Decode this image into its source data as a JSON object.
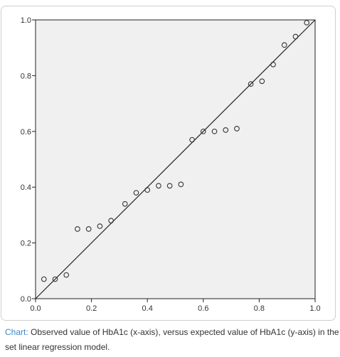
{
  "chart_data": {
    "type": "scatter",
    "title": "",
    "xlabel": "",
    "ylabel": "",
    "xlim": [
      0,
      1
    ],
    "ylim": [
      0,
      1
    ],
    "x_ticks": [
      "0.0",
      "0.2",
      "0.4",
      "0.6",
      "0.8",
      "1.0"
    ],
    "y_ticks": [
      "0.0",
      "0.2",
      "0.4",
      "0.6",
      "0.8",
      "1.0"
    ],
    "grid": false,
    "background_color": "#f0f0f0",
    "marker_color": "#333333",
    "line_color": "#222222",
    "reference_line": {
      "from": [
        0,
        0
      ],
      "to": [
        1,
        1
      ]
    },
    "points": [
      {
        "x": 0.03,
        "y": 0.07
      },
      {
        "x": 0.07,
        "y": 0.07
      },
      {
        "x": 0.11,
        "y": 0.085
      },
      {
        "x": 0.15,
        "y": 0.25
      },
      {
        "x": 0.19,
        "y": 0.25
      },
      {
        "x": 0.23,
        "y": 0.26
      },
      {
        "x": 0.27,
        "y": 0.28
      },
      {
        "x": 0.32,
        "y": 0.34
      },
      {
        "x": 0.36,
        "y": 0.38
      },
      {
        "x": 0.4,
        "y": 0.39
      },
      {
        "x": 0.44,
        "y": 0.405
      },
      {
        "x": 0.48,
        "y": 0.405
      },
      {
        "x": 0.52,
        "y": 0.41
      },
      {
        "x": 0.56,
        "y": 0.57
      },
      {
        "x": 0.6,
        "y": 0.6
      },
      {
        "x": 0.64,
        "y": 0.6
      },
      {
        "x": 0.68,
        "y": 0.605
      },
      {
        "x": 0.72,
        "y": 0.61
      },
      {
        "x": 0.77,
        "y": 0.77
      },
      {
        "x": 0.81,
        "y": 0.78
      },
      {
        "x": 0.85,
        "y": 0.84
      },
      {
        "x": 0.89,
        "y": 0.91
      },
      {
        "x": 0.93,
        "y": 0.94
      },
      {
        "x": 0.97,
        "y": 0.99
      }
    ]
  },
  "caption": {
    "label": "Chart:",
    "text": " Observed value of HbA1c (x-axis), versus expected value of HbA1c (y-axis) in the set linear regression model."
  }
}
